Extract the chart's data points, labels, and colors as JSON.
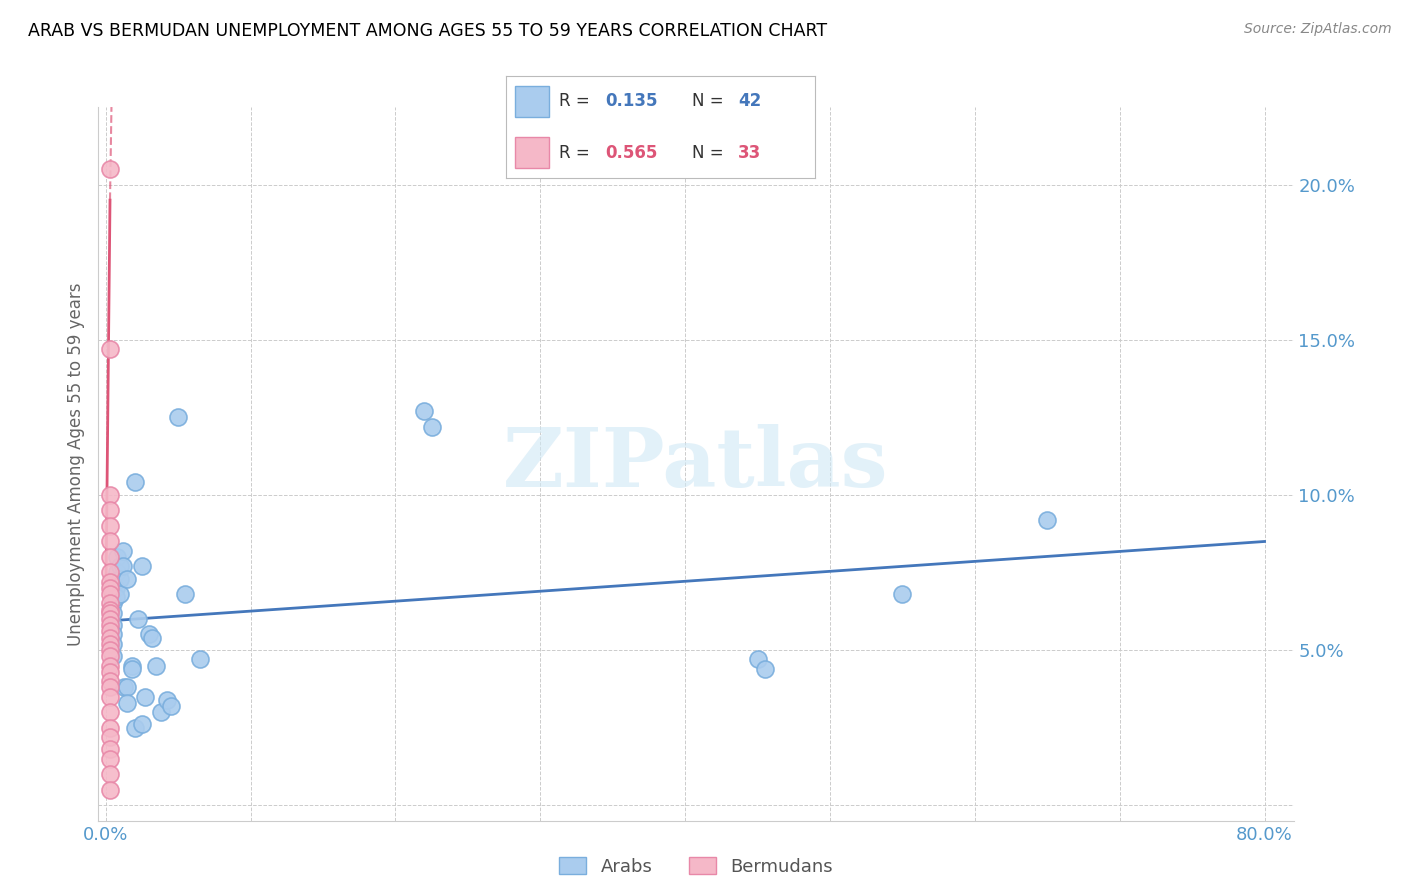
{
  "title": "ARAB VS BERMUDAN UNEMPLOYMENT AMONG AGES 55 TO 59 YEARS CORRELATION CHART",
  "source": "Source: ZipAtlas.com",
  "ylabel": "Unemployment Among Ages 55 to 59 years",
  "xlim": [
    -0.005,
    0.82
  ],
  "ylim": [
    -0.005,
    0.225
  ],
  "ytick_positions": [
    0.0,
    0.05,
    0.1,
    0.15,
    0.2
  ],
  "ytick_labels": [
    "",
    "5.0%",
    "10.0%",
    "15.0%",
    "20.0%"
  ],
  "xtick_positions": [
    0.0,
    0.1,
    0.2,
    0.3,
    0.4,
    0.5,
    0.6,
    0.7,
    0.8
  ],
  "xtick_labels": [
    "0.0%",
    "",
    "",
    "",
    "",
    "",
    "",
    "",
    "80.0%"
  ],
  "arab_color": "#aaccee",
  "arab_edge_color": "#7aaedd",
  "bermudan_color": "#f5b8c8",
  "bermudan_edge_color": "#e888a8",
  "arab_line_color": "#4477bb",
  "bermudan_line_color": "#dd5577",
  "tick_color": "#5599cc",
  "grid_color": "#cccccc",
  "watermark": "ZIPatlas",
  "watermark_color": "#d0e8f5",
  "arab_R": "0.135",
  "arab_N": "42",
  "bermudan_R": "0.565",
  "bermudan_N": "33",
  "arab_x": [
    0.005,
    0.005,
    0.005,
    0.005,
    0.005,
    0.005,
    0.007,
    0.007,
    0.008,
    0.008,
    0.01,
    0.01,
    0.01,
    0.012,
    0.012,
    0.013,
    0.015,
    0.015,
    0.015,
    0.018,
    0.018,
    0.02,
    0.02,
    0.022,
    0.025,
    0.025,
    0.027,
    0.03,
    0.032,
    0.035,
    0.038,
    0.042,
    0.045,
    0.05,
    0.055,
    0.065,
    0.22,
    0.225,
    0.45,
    0.455,
    0.55,
    0.65
  ],
  "arab_y": [
    0.065,
    0.062,
    0.058,
    0.055,
    0.052,
    0.048,
    0.07,
    0.067,
    0.08,
    0.075,
    0.077,
    0.073,
    0.068,
    0.082,
    0.077,
    0.038,
    0.073,
    0.038,
    0.033,
    0.045,
    0.044,
    0.104,
    0.025,
    0.06,
    0.077,
    0.026,
    0.035,
    0.055,
    0.054,
    0.045,
    0.03,
    0.034,
    0.032,
    0.125,
    0.068,
    0.047,
    0.127,
    0.122,
    0.047,
    0.044,
    0.068,
    0.092
  ],
  "bermudan_x": [
    0.003,
    0.003,
    0.003,
    0.003,
    0.003,
    0.003,
    0.003,
    0.003,
    0.003,
    0.003,
    0.003,
    0.003,
    0.003,
    0.003,
    0.003,
    0.003,
    0.003,
    0.003,
    0.003,
    0.003,
    0.003,
    0.003,
    0.003,
    0.003,
    0.003,
    0.003,
    0.003,
    0.003,
    0.003,
    0.003,
    0.003,
    0.003,
    0.003
  ],
  "bermudan_y": [
    0.205,
    0.147,
    0.1,
    0.095,
    0.09,
    0.085,
    0.08,
    0.075,
    0.072,
    0.07,
    0.068,
    0.065,
    0.063,
    0.062,
    0.06,
    0.058,
    0.056,
    0.054,
    0.052,
    0.05,
    0.048,
    0.045,
    0.043,
    0.04,
    0.038,
    0.035,
    0.03,
    0.025,
    0.022,
    0.018,
    0.015,
    0.01,
    0.005
  ],
  "bermudan_line_x0": 0.0,
  "bermudan_line_y0": 0.06,
  "bermudan_line_x1": 0.003,
  "bermudan_line_y1": 0.195,
  "bermudan_line_x_ext0": 0.003,
  "bermudan_line_y_ext0": 0.195,
  "bermudan_line_x_ext1": 0.004,
  "bermudan_line_y_ext1": 0.225
}
